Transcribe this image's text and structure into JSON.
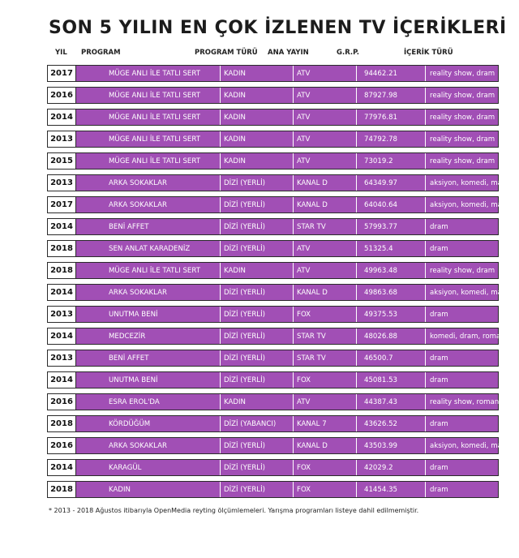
{
  "title": "SON 5 YILIN EN ÇOK İZLENEN TV İÇERİKLERİ",
  "headers": {
    "year": "YIL",
    "program": "PROGRAM",
    "type": "PROGRAM TÜRÜ",
    "channel": "ANA YAYIN",
    "grp": "G.R.P.",
    "genre": "İÇERİK TÜRÜ"
  },
  "rows": [
    {
      "year": "2017",
      "program": "MÜGE ANLI İLE TATLI SERT",
      "type": "KADIN",
      "channel": "ATV",
      "grp": "94462.21",
      "genre": "reality show, dram"
    },
    {
      "year": "2016",
      "program": "MÜGE ANLI İLE TATLI SERT",
      "type": "KADIN",
      "channel": "ATV",
      "grp": "87927.98",
      "genre": "reality show, dram"
    },
    {
      "year": "2014",
      "program": "MÜGE ANLI İLE TATLI SERT",
      "type": "KADIN",
      "channel": "ATV",
      "grp": "77976.81",
      "genre": "reality show, dram"
    },
    {
      "year": "2013",
      "program": "MÜGE ANLI İLE TATLI SERT",
      "type": "KADIN",
      "channel": "ATV",
      "grp": "74792.78",
      "genre": "reality show, dram"
    },
    {
      "year": "2015",
      "program": "MÜGE ANLI İLE TATLI SERT",
      "type": "KADIN",
      "channel": "ATV",
      "grp": "73019.2",
      "genre": "reality show, dram"
    },
    {
      "year": "2013",
      "program": "ARKA SOKAKLAR",
      "type": "DİZİ (YERLİ)",
      "channel": "KANAL D",
      "grp": "64349.97",
      "genre": "aksiyon, komedi, macera"
    },
    {
      "year": "2017",
      "program": "ARKA SOKAKLAR",
      "type": "DİZİ (YERLİ)",
      "channel": "KANAL D",
      "grp": "64040.64",
      "genre": "aksiyon, komedi, macera"
    },
    {
      "year": "2014",
      "program": "BENİ AFFET",
      "type": "DİZİ (YERLİ)",
      "channel": "STAR TV",
      "grp": "57993.77",
      "genre": "dram"
    },
    {
      "year": "2018",
      "program": "SEN ANLAT KARADENİZ",
      "type": "DİZİ (YERLİ)",
      "channel": "ATV",
      "grp": "51325.4",
      "genre": "dram"
    },
    {
      "year": "2018",
      "program": "MÜGE ANLI İLE TATLI SERT",
      "type": "KADIN",
      "channel": "ATV",
      "grp": "49963.48",
      "genre": "reality show, dram"
    },
    {
      "year": "2014",
      "program": "ARKA SOKAKLAR",
      "type": "DİZİ (YERLİ)",
      "channel": "KANAL D",
      "grp": "49863.68",
      "genre": "aksiyon, komedi, macera"
    },
    {
      "year": "2013",
      "program": "UNUTMA BENİ",
      "type": "DİZİ (YERLİ)",
      "channel": "FOX",
      "grp": "49375.53",
      "genre": "dram"
    },
    {
      "year": "2014",
      "program": "MEDCEZİR",
      "type": "DİZİ (YERLİ)",
      "channel": "STAR TV",
      "grp": "48026.88",
      "genre": "komedi, dram, romantik"
    },
    {
      "year": "2013",
      "program": "BENİ AFFET",
      "type": "DİZİ (YERLİ)",
      "channel": "STAR TV",
      "grp": "46500.7",
      "genre": "dram"
    },
    {
      "year": "2014",
      "program": "UNUTMA BENİ",
      "type": "DİZİ (YERLİ)",
      "channel": "FOX",
      "grp": "45081.53",
      "genre": "dram"
    },
    {
      "year": "2016",
      "program": "ESRA EROL'DA",
      "type": "KADIN",
      "channel": "ATV",
      "grp": "44387.43",
      "genre": "reality show, romantik"
    },
    {
      "year": "2018",
      "program": "KÖRDÜĞÜM",
      "type": "DİZİ (YABANCI)",
      "channel": "KANAL 7",
      "grp": "43626.52",
      "genre": "dram"
    },
    {
      "year": "2016",
      "program": "ARKA SOKAKLAR",
      "type": "DİZİ (YERLİ)",
      "channel": "KANAL D",
      "grp": "43503.99",
      "genre": "aksiyon, komedi, macera"
    },
    {
      "year": "2014",
      "program": "KARAGÜL",
      "type": "DİZİ (YERLİ)",
      "channel": "FOX",
      "grp": "42029.2",
      "genre": "dram"
    },
    {
      "year": "2018",
      "program": "KADIN",
      "type": "DİZİ (YERLİ)",
      "channel": "FOX",
      "grp": "41454.35",
      "genre": "dram"
    }
  ],
  "footnote": "* 2013 - 2018 Ağustos itibarıyla OpenMedia reyting ölçümlemeleri. Yarışma programları listeye dahil edilmemiştir.",
  "colors": {
    "bar": "#a14fb5",
    "text": "#ffffff",
    "border": "#2b2b2b"
  }
}
